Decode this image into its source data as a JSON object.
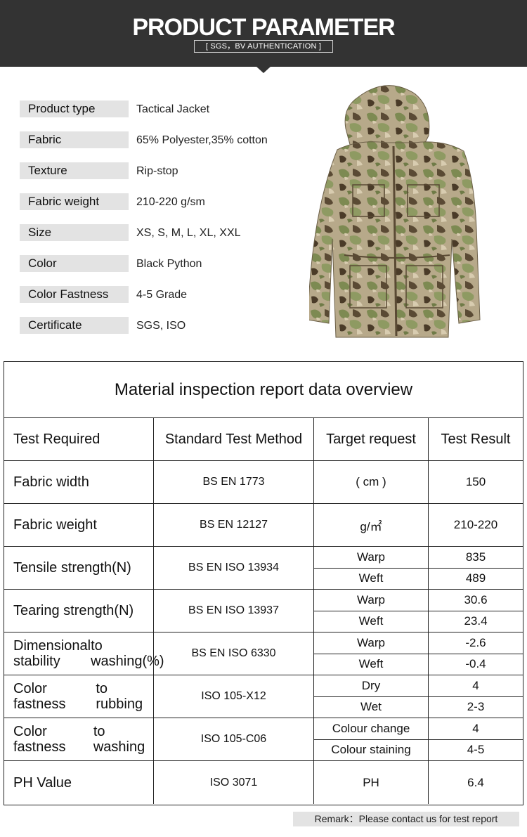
{
  "banner": {
    "title": "PRODUCT PARAMETER",
    "subtitle": "[ SGS，BV AUTHENTICATION ]"
  },
  "params": [
    {
      "label": "Product type",
      "value": "Tactical Jacket"
    },
    {
      "label": "Fabric",
      "value": "65% Polyester,35% cotton"
    },
    {
      "label": "Texture",
      "value": "Rip-stop"
    },
    {
      "label": "Fabric weight",
      "value": "210-220 g/sm"
    },
    {
      "label": "Size",
      "value": "XS, S, M, L, XL, XXL"
    },
    {
      "label": "Color",
      "value": "Black Python"
    },
    {
      "label": "Color Fastness",
      "value": "4-5 Grade"
    },
    {
      "label": "Certificate",
      "value": "SGS, ISO"
    }
  ],
  "report": {
    "title": "Material inspection report data overview",
    "headers": [
      "Test Required",
      "Standard Test Method",
      "Target request",
      "Test Result"
    ],
    "rows": [
      {
        "test": [
          "Fabric width"
        ],
        "method": "BS EN 1773",
        "subs": [
          {
            "target": "( cm )",
            "result": "150"
          }
        ]
      },
      {
        "test": [
          "Fabric weight"
        ],
        "method": "BS EN 12127",
        "subs": [
          {
            "target": "g/㎡",
            "result": "210-220"
          }
        ]
      },
      {
        "test": [
          "Tensile strength(N)"
        ],
        "method": "BS EN ISO 13934",
        "subs": [
          {
            "target": "Warp",
            "result": "835"
          },
          {
            "target": "Weft",
            "result": "489"
          }
        ]
      },
      {
        "test": [
          "Tearing strength(N)"
        ],
        "method": "BS EN ISO 13937",
        "subs": [
          {
            "target": "Warp",
            "result": "30.6"
          },
          {
            "target": "Weft",
            "result": "23.4"
          }
        ]
      },
      {
        "test": [
          "Dimensional stability",
          "to washing(%)"
        ],
        "method": "BS EN ISO 6330",
        "subs": [
          {
            "target": "Warp",
            "result": "-2.6"
          },
          {
            "target": "Weft",
            "result": "-0.4"
          }
        ]
      },
      {
        "test": [
          "Color fastness",
          "to rubbing"
        ],
        "method": "ISO 105-X12",
        "subs": [
          {
            "target": "Dry",
            "result": "4"
          },
          {
            "target": "Wet",
            "result": "2-3"
          }
        ]
      },
      {
        "test": [
          "Color fastness",
          "to washing"
        ],
        "method": "ISO 105-C06",
        "subs": [
          {
            "target": "Colour change",
            "result": "4"
          },
          {
            "target": "Colour staining",
            "result": "4-5"
          }
        ]
      },
      {
        "test": [
          "PH Value"
        ],
        "method": "ISO 3071",
        "subs": [
          {
            "target": "PH",
            "result": "6.4"
          }
        ]
      }
    ]
  },
  "remark": "Remark：Please contact us for test report",
  "colors": {
    "banner": "#333333",
    "label_bg": "#e3e3e3",
    "border": "#222222"
  }
}
